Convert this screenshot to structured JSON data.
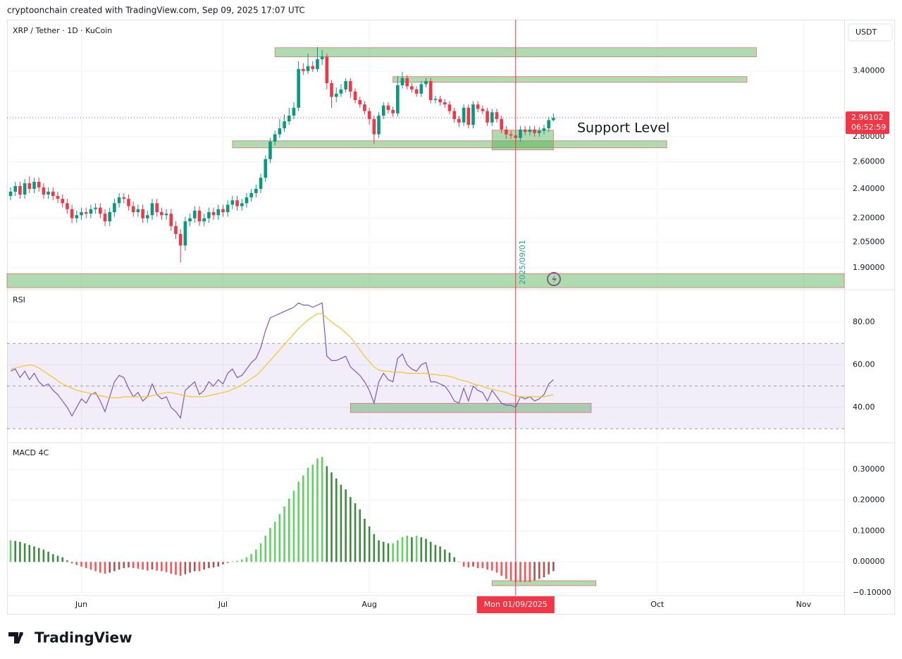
{
  "header": {
    "credit": "cryptoonchain created with TradingView.com, Sep 09, 2025 17:07 UTC",
    "logo": "TradingView"
  },
  "chart_data": [
    {
      "type": "candlestick",
      "title": "XRP / Tether · 1D · KuCoin",
      "currency": "USDT",
      "log_scale": true,
      "grid": true,
      "up_color": "#089981",
      "down_color": "#f23645",
      "xlim": [
        -0.75,
        176.6
      ],
      "xticks": [
        {
          "value": 15,
          "label": "Jun"
        },
        {
          "value": 45,
          "label": "Jul"
        },
        {
          "value": 76,
          "label": "Aug"
        },
        {
          "value": 137,
          "label": "Oct"
        },
        {
          "value": 168,
          "label": "Nov"
        }
      ],
      "ylim": [
        1.785,
        3.94
      ],
      "yticks": [
        {
          "value": 3.4,
          "label": "3.40000"
        },
        {
          "value": 2.8,
          "label": "2.80000"
        },
        {
          "value": 2.6,
          "label": "2.60000"
        },
        {
          "value": 2.4,
          "label": "2.40000"
        },
        {
          "value": 2.2,
          "label": "2.20000"
        },
        {
          "value": 2.05,
          "label": "2.05000"
        },
        {
          "value": 1.9,
          "label": "1.90000"
        }
      ],
      "open": [
        2.35,
        2.38,
        2.42,
        2.36,
        2.44,
        2.4,
        2.45,
        2.41,
        2.36,
        2.38,
        2.35,
        2.33,
        2.3,
        2.26,
        2.2,
        2.22,
        2.24,
        2.23,
        2.26,
        2.27,
        2.23,
        2.18,
        2.24,
        2.3,
        2.34,
        2.33,
        2.28,
        2.24,
        2.26,
        2.2,
        2.22,
        2.3,
        2.24,
        2.22,
        2.23,
        2.15,
        2.1,
        2.03,
        2.18,
        2.2,
        2.25,
        2.18,
        2.2,
        2.24,
        2.22,
        2.26,
        2.24,
        2.29,
        2.32,
        2.28,
        2.3,
        2.34,
        2.37,
        2.4,
        2.48,
        2.62,
        2.76,
        2.82,
        2.87,
        2.93,
        2.98,
        3.05,
        3.42,
        3.4,
        3.45,
        3.42,
        3.52,
        3.55,
        3.28,
        3.15,
        3.18,
        3.22,
        3.3,
        3.2,
        3.12,
        3.08,
        3.02,
        2.95,
        2.82,
        2.98,
        3.07,
        3.03,
        3.0,
        3.26,
        3.33,
        3.25,
        3.22,
        3.18,
        3.27,
        3.3,
        3.12,
        3.13,
        3.1,
        3.08,
        3.02,
        2.95,
        2.92,
        3.05,
        2.9,
        3.08,
        3.04,
        3.02,
        2.92,
        3.01,
        2.95,
        2.86,
        2.82,
        2.81,
        2.79,
        2.86,
        2.84,
        2.86,
        2.83,
        2.85,
        2.87,
        2.94
      ],
      "high": [
        2.41,
        2.45,
        2.45,
        2.47,
        2.49,
        2.48,
        2.48,
        2.44,
        2.41,
        2.41,
        2.38,
        2.36,
        2.33,
        2.29,
        2.25,
        2.27,
        2.27,
        2.29,
        2.3,
        2.3,
        2.26,
        2.27,
        2.33,
        2.37,
        2.37,
        2.36,
        2.31,
        2.29,
        2.29,
        2.25,
        2.33,
        2.33,
        2.27,
        2.26,
        2.26,
        2.18,
        2.13,
        2.21,
        2.23,
        2.28,
        2.28,
        2.23,
        2.27,
        2.27,
        2.29,
        2.29,
        2.32,
        2.35,
        2.35,
        2.33,
        2.37,
        2.4,
        2.43,
        2.51,
        2.65,
        2.79,
        2.85,
        2.95,
        2.99,
        3.05,
        3.1,
        3.5,
        3.48,
        3.58,
        3.5,
        3.65,
        3.62,
        3.58,
        3.31,
        3.24,
        3.27,
        3.33,
        3.33,
        3.23,
        3.15,
        3.11,
        3.05,
        2.98,
        3.01,
        3.1,
        3.1,
        3.06,
        3.35,
        3.39,
        3.36,
        3.28,
        3.25,
        3.3,
        3.33,
        3.33,
        3.16,
        3.16,
        3.13,
        3.11,
        3.05,
        2.98,
        3.08,
        3.08,
        3.11,
        3.11,
        3.07,
        3.05,
        3.04,
        3.04,
        2.98,
        2.89,
        2.85,
        2.84,
        2.89,
        2.89,
        2.89,
        2.89,
        2.88,
        2.9,
        2.97,
        3.0
      ],
      "low": [
        2.32,
        2.35,
        2.33,
        2.33,
        2.37,
        2.37,
        2.38,
        2.33,
        2.33,
        2.32,
        2.3,
        2.27,
        2.23,
        2.17,
        2.17,
        2.19,
        2.2,
        2.2,
        2.23,
        2.2,
        2.15,
        2.15,
        2.21,
        2.27,
        2.3,
        2.25,
        2.21,
        2.21,
        2.17,
        2.17,
        2.19,
        2.21,
        2.19,
        2.19,
        2.12,
        2.07,
        1.93,
        2.0,
        2.15,
        2.17,
        2.15,
        2.15,
        2.17,
        2.19,
        2.19,
        2.21,
        2.21,
        2.26,
        2.25,
        2.25,
        2.27,
        2.31,
        2.34,
        2.37,
        2.45,
        2.59,
        2.73,
        2.79,
        2.84,
        2.9,
        2.95,
        3.02,
        3.36,
        3.37,
        3.39,
        3.39,
        3.46,
        3.22,
        3.05,
        3.1,
        3.15,
        3.19,
        3.14,
        3.09,
        3.05,
        2.99,
        2.9,
        2.74,
        2.79,
        2.95,
        3.0,
        2.97,
        2.97,
        3.23,
        3.22,
        3.19,
        3.15,
        3.15,
        3.24,
        3.09,
        3.09,
        3.07,
        3.05,
        2.99,
        2.92,
        2.88,
        2.89,
        2.87,
        2.87,
        3.01,
        2.99,
        2.89,
        2.89,
        2.92,
        2.83,
        2.78,
        2.78,
        2.76,
        2.76,
        2.81,
        2.81,
        2.8,
        2.8,
        2.82,
        2.84,
        2.93
      ],
      "close": [
        2.38,
        2.42,
        2.36,
        2.44,
        2.4,
        2.45,
        2.41,
        2.36,
        2.38,
        2.35,
        2.33,
        2.3,
        2.26,
        2.2,
        2.22,
        2.24,
        2.23,
        2.26,
        2.27,
        2.23,
        2.18,
        2.24,
        2.3,
        2.34,
        2.33,
        2.28,
        2.24,
        2.26,
        2.2,
        2.22,
        2.3,
        2.24,
        2.22,
        2.23,
        2.15,
        2.1,
        2.03,
        2.18,
        2.2,
        2.25,
        2.18,
        2.2,
        2.24,
        2.22,
        2.26,
        2.24,
        2.29,
        2.32,
        2.28,
        2.3,
        2.34,
        2.37,
        2.4,
        2.48,
        2.62,
        2.76,
        2.82,
        2.87,
        2.93,
        2.98,
        3.05,
        3.42,
        3.4,
        3.45,
        3.42,
        3.52,
        3.55,
        3.28,
        3.15,
        3.18,
        3.22,
        3.3,
        3.2,
        3.12,
        3.08,
        3.02,
        2.95,
        2.82,
        2.98,
        3.07,
        3.03,
        3.0,
        3.26,
        3.33,
        3.25,
        3.22,
        3.18,
        3.27,
        3.3,
        3.12,
        3.13,
        3.1,
        3.08,
        3.02,
        2.95,
        2.92,
        3.05,
        2.9,
        3.08,
        3.04,
        3.02,
        2.92,
        3.01,
        2.95,
        2.86,
        2.82,
        2.81,
        2.79,
        2.86,
        2.84,
        2.86,
        2.83,
        2.85,
        2.87,
        2.94,
        2.96
      ],
      "zone_color": "#4caf50",
      "zone_border": "#ef6c6c",
      "zones": [
        {
          "x0": 56,
          "x1": 158,
          "y0": 3.546,
          "y1": 3.642
        },
        {
          "x0": 81,
          "x1": 156,
          "y0": 3.288,
          "y1": 3.344
        },
        {
          "x0": 47,
          "x1": 139,
          "y0": 2.709,
          "y1": 2.766
        },
        {
          "x0": 102,
          "x1": 115,
          "y0": 2.693,
          "y1": 2.854
        },
        {
          "x0": -0.75,
          "x1": 176.6,
          "y0": 1.792,
          "y1": 1.868
        }
      ],
      "annotation": "Support Level",
      "last_price": {
        "value": 2.96102,
        "label": "2.96102"
      },
      "countdown": "06:52:59",
      "marker": {
        "x": 107,
        "label": "Mon 01/09/2025",
        "date_label": "2025/09/01",
        "color": "#f23645"
      }
    },
    {
      "type": "line",
      "title": "RSI",
      "grid": true,
      "ylim": [
        23.8,
        94.9
      ],
      "yticks": [
        {
          "value": 80,
          "label": "80.00"
        },
        {
          "value": 60,
          "label": "60.00"
        },
        {
          "value": 40,
          "label": "40.00"
        }
      ],
      "levels": [
        70,
        50,
        30
      ],
      "band_color": "#7e57c2",
      "series": [
        {
          "color": "#7e57c2",
          "values": [
            57,
            58,
            54,
            57,
            53,
            56,
            52,
            50,
            51,
            48,
            46,
            43,
            40,
            36,
            40,
            44,
            42,
            46,
            47,
            43,
            38,
            45,
            52,
            55,
            54,
            49,
            45,
            47,
            43,
            45,
            51,
            46,
            44,
            45,
            40,
            38,
            35,
            48,
            50,
            52,
            46,
            48,
            52,
            50,
            53,
            51,
            56,
            58,
            54,
            55,
            58,
            61,
            63,
            68,
            76,
            82,
            83,
            84,
            85,
            86,
            87,
            89,
            88,
            88,
            87,
            88,
            89,
            64,
            62,
            62,
            63,
            64,
            59,
            57,
            55,
            52,
            48,
            42,
            52,
            56,
            53,
            52,
            63,
            65,
            60,
            58,
            57,
            60,
            61,
            52,
            52,
            51,
            50,
            47,
            43,
            42,
            49,
            43,
            50,
            48,
            47,
            43,
            48,
            45,
            42,
            41,
            41,
            40,
            45,
            44,
            45,
            43,
            44,
            46,
            51,
            53
          ]
        },
        {
          "color": "#f7c325",
          "values": [
            58,
            58.5,
            59,
            59.5,
            60,
            59.5,
            58.5,
            57,
            55.5,
            54,
            52.5,
            51,
            50,
            49,
            48,
            47.5,
            47,
            46.5,
            46,
            45.5,
            45,
            44.5,
            44.5,
            44.5,
            45,
            45,
            45,
            45,
            45,
            45,
            45.5,
            46,
            46.5,
            47,
            47,
            46.5,
            46,
            45.5,
            45,
            45,
            45,
            45,
            45.5,
            46,
            46.5,
            47,
            47.5,
            48.5,
            49.5,
            50.5,
            52,
            53.5,
            55,
            57,
            59.5,
            62,
            64.5,
            67,
            69.5,
            72,
            74.5,
            77,
            79,
            81,
            82.5,
            84,
            84,
            82,
            80,
            78.5,
            77,
            75,
            73,
            70,
            67,
            64,
            61.5,
            59,
            57.5,
            57,
            57,
            56.5,
            56.5,
            56.5,
            56,
            56,
            56,
            56,
            56,
            55.5,
            55.5,
            55,
            55,
            54.5,
            54,
            53,
            52.5,
            52,
            51,
            50.5,
            50,
            49,
            48.5,
            48,
            47.5,
            47,
            46,
            45.5,
            45,
            45,
            45,
            45,
            45,
            45,
            45.5,
            46
          ]
        }
      ],
      "zone_color": "#4caf50",
      "zone_border": "#ef6c6c",
      "zones": [
        {
          "x0": 72,
          "x1": 123,
          "y0": 37.6,
          "y1": 41.9
        }
      ]
    },
    {
      "type": "histogram",
      "title": "MACD 4C",
      "grid": true,
      "ylim": [
        -0.109,
        0.384
      ],
      "yticks": [
        {
          "value": 0.3,
          "label": "0.30000"
        },
        {
          "value": 0.2,
          "label": "0.20000"
        },
        {
          "value": 0.1,
          "label": "0.10000"
        },
        {
          "value": 0,
          "label": "0.00000"
        },
        {
          "value": -0.1,
          "label": "−0.10000"
        }
      ],
      "colors": {
        "rise_above": "#5fd35f",
        "fall_above": "#3d8b3d",
        "fall_below": "#ff5252",
        "rise_below": "#b35050"
      },
      "values": [
        0.07,
        0.068,
        0.065,
        0.06,
        0.055,
        0.05,
        0.045,
        0.04,
        0.033,
        0.025,
        0.02,
        0.015,
        0.005,
        -0.005,
        -0.01,
        -0.015,
        -0.02,
        -0.025,
        -0.03,
        -0.035,
        -0.038,
        -0.035,
        -0.03,
        -0.025,
        -0.02,
        -0.018,
        -0.02,
        -0.022,
        -0.025,
        -0.028,
        -0.025,
        -0.028,
        -0.03,
        -0.033,
        -0.038,
        -0.042,
        -0.045,
        -0.04,
        -0.035,
        -0.03,
        -0.03,
        -0.025,
        -0.02,
        -0.018,
        -0.015,
        -0.008,
        -0.003,
        0.002,
        0.004,
        0.008,
        0.015,
        0.025,
        0.04,
        0.06,
        0.085,
        0.11,
        0.13,
        0.155,
        0.18,
        0.205,
        0.23,
        0.26,
        0.28,
        0.305,
        0.315,
        0.335,
        0.34,
        0.31,
        0.29,
        0.27,
        0.25,
        0.235,
        0.21,
        0.19,
        0.17,
        0.14,
        0.115,
        0.09,
        0.07,
        0.065,
        0.06,
        0.06,
        0.07,
        0.08,
        0.085,
        0.08,
        0.085,
        0.08,
        0.075,
        0.065,
        0.055,
        0.05,
        0.04,
        0.03,
        0.015,
        0.001,
        -0.015,
        -0.018,
        -0.015,
        -0.02,
        -0.02,
        -0.025,
        -0.028,
        -0.035,
        -0.045,
        -0.055,
        -0.06,
        -0.065,
        -0.065,
        -0.065,
        -0.065,
        -0.06,
        -0.055,
        -0.05,
        -0.04,
        -0.03
      ],
      "zone_color": "#4caf50",
      "zone_border": "#ef6c6c",
      "zones": [
        {
          "x0": 102,
          "x1": 124,
          "y0": -0.077,
          "y1": -0.061
        }
      ]
    }
  ]
}
